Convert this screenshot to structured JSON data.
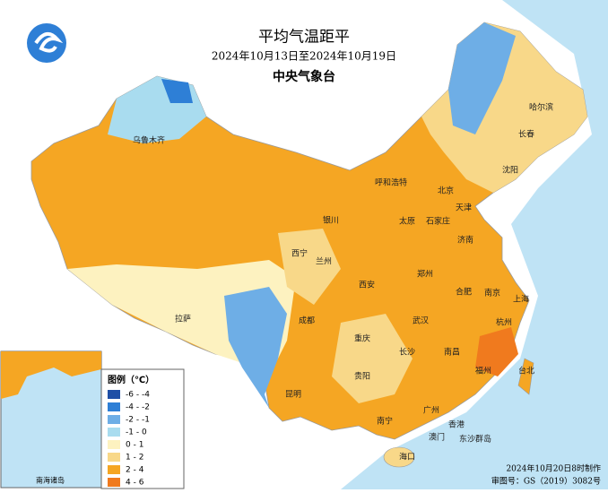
{
  "title": "平均气温距平",
  "subtitle": "2024年10月13日至2024年10月19日",
  "org": "中央气象台",
  "legend": {
    "title": "图例（℃）",
    "items": [
      {
        "label": "-6 - -4",
        "color": "#1f4fa6"
      },
      {
        "label": "-4 - -2",
        "color": "#2e7fd6"
      },
      {
        "label": "-2 - -1",
        "color": "#6eaee6"
      },
      {
        "label": "-1 - 0",
        "color": "#a9dcef"
      },
      {
        "label": "0 - 1",
        "color": "#fdf2c0"
      },
      {
        "label": "1 - 2",
        "color": "#f8d889"
      },
      {
        "label": "2 - 4",
        "color": "#f5a623"
      },
      {
        "label": "4 - 6",
        "color": "#f07a1e"
      }
    ]
  },
  "cities": [
    "乌鲁木齐",
    "哈尔滨",
    "长春",
    "沈阳",
    "呼和浩特",
    "北京",
    "天津",
    "石家庄",
    "太原",
    "济南",
    "银川",
    "西宁",
    "兰州",
    "郑州",
    "西安",
    "合肥",
    "南京",
    "上海",
    "杭州",
    "成都",
    "重庆",
    "武汉",
    "长沙",
    "南昌",
    "福州",
    "台北",
    "拉萨",
    "贵阳",
    "昆明",
    "南宁",
    "广州",
    "香港",
    "澳门",
    "海口",
    "东沙群岛"
  ],
  "inset_label": "南海诸岛",
  "footer": [
    "2024年10月20日8时制作",
    "审图号：GS（2019）3082号"
  ]
}
